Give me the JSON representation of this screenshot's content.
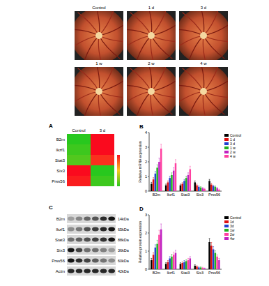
{
  "photos": {
    "labels": [
      "Control",
      "1 d",
      "3 d",
      "1 w",
      "2 w",
      "4 w"
    ]
  },
  "heatmap": {
    "title": "A",
    "columns": [
      "Control",
      "3 d"
    ],
    "rows": [
      "B2m",
      "Ikzf1",
      "Stat3",
      "Six3",
      "Prss56"
    ],
    "cells": [
      [
        -1,
        1
      ],
      [
        -0.9,
        1
      ],
      [
        -0.8,
        0.8
      ],
      [
        1,
        -1
      ],
      [
        0.9,
        -0.9
      ]
    ],
    "color_range": [
      -1,
      1
    ]
  },
  "blot": {
    "title": "C",
    "rows": [
      {
        "name": "B2m",
        "size": "14kDa"
      },
      {
        "name": "Ikzf1",
        "size": "65kDa"
      },
      {
        "name": "Stat3",
        "size": "88kDa"
      },
      {
        "name": "Six3",
        "size": "36kDa"
      },
      {
        "name": "Prss56",
        "size": "60kDa"
      },
      {
        "name": "Actin",
        "size": "42kDa"
      }
    ]
  },
  "chart_data": [
    {
      "title": "B",
      "type": "bar",
      "y_label": "Relative mRNA expression",
      "categories": [
        "B2m",
        "Ikzf1",
        "Stat3",
        "Six3",
        "Prss56"
      ],
      "series": [
        {
          "name": "Control",
          "color": "#000000",
          "values": [
            0.5,
            0.4,
            0.4,
            0.6,
            0.7
          ],
          "errors": [
            0.1,
            0.08,
            0.08,
            0.1,
            0.1
          ]
        },
        {
          "name": "1 d",
          "color": "#e01010",
          "values": [
            0.8,
            0.6,
            0.5,
            0.4,
            0.45
          ],
          "errors": [
            0.12,
            0.1,
            0.08,
            0.08,
            0.08
          ]
        },
        {
          "name": "3 d",
          "color": "#2040d0",
          "values": [
            1.2,
            0.9,
            0.7,
            0.3,
            0.35
          ],
          "errors": [
            0.15,
            0.12,
            0.1,
            0.06,
            0.06
          ]
        },
        {
          "name": "1 w",
          "color": "#20b020",
          "values": [
            1.6,
            1.1,
            0.9,
            0.25,
            0.3
          ],
          "errors": [
            0.2,
            0.15,
            0.12,
            0.05,
            0.05
          ]
        },
        {
          "name": "2 w",
          "color": "#c020c0",
          "values": [
            2.0,
            1.4,
            1.1,
            0.2,
            0.2
          ],
          "errors": [
            0.25,
            0.2,
            0.15,
            0.05,
            0.05
          ]
        },
        {
          "name": "4 w",
          "color": "#ff40a0",
          "values": [
            2.9,
            1.9,
            1.5,
            0.15,
            0.1
          ],
          "errors": [
            0.3,
            0.25,
            0.2,
            0.04,
            0.04
          ]
        }
      ],
      "ylim": [
        0,
        4
      ],
      "yticks": [
        0,
        1,
        2,
        3,
        4
      ],
      "legend": "right"
    },
    {
      "title": "D",
      "type": "bar",
      "y_label": "Relative protein expression",
      "categories": [
        "B2m",
        "Ikzf1",
        "Stat3",
        "Six3",
        "Prss56"
      ],
      "series": [
        {
          "name": "Control",
          "color": "#000000",
          "values": [
            0.5,
            0.3,
            0.3,
            0.2,
            1.5
          ],
          "errors": [
            0.1,
            0.06,
            0.06,
            0.05,
            0.2
          ]
        },
        {
          "name": "1d",
          "color": "#e01010",
          "values": [
            0.8,
            0.4,
            0.35,
            0.15,
            1.3
          ],
          "errors": [
            0.12,
            0.08,
            0.06,
            0.04,
            0.18
          ]
        },
        {
          "name": "3d",
          "color": "#2040d0",
          "values": [
            1.2,
            0.6,
            0.4,
            0.1,
            1.1
          ],
          "errors": [
            0.15,
            0.1,
            0.08,
            0.03,
            0.15
          ]
        },
        {
          "name": "1w",
          "color": "#20b020",
          "values": [
            1.4,
            0.7,
            0.45,
            0.1,
            0.9
          ],
          "errors": [
            0.2,
            0.12,
            0.08,
            0.03,
            0.12
          ]
        },
        {
          "name": "2w",
          "color": "#ff40a0",
          "values": [
            1.9,
            0.8,
            0.5,
            0.08,
            0.7
          ],
          "errors": [
            0.25,
            0.15,
            0.1,
            0.03,
            0.1
          ]
        },
        {
          "name": "4w",
          "color": "#c020c0",
          "values": [
            2.2,
            0.9,
            0.6,
            0.05,
            0.5
          ],
          "errors": [
            0.3,
            0.15,
            0.1,
            0.02,
            0.1
          ]
        }
      ],
      "ylim": [
        0,
        3
      ],
      "yticks": [
        0,
        1,
        2,
        3
      ],
      "legend": "right"
    }
  ]
}
